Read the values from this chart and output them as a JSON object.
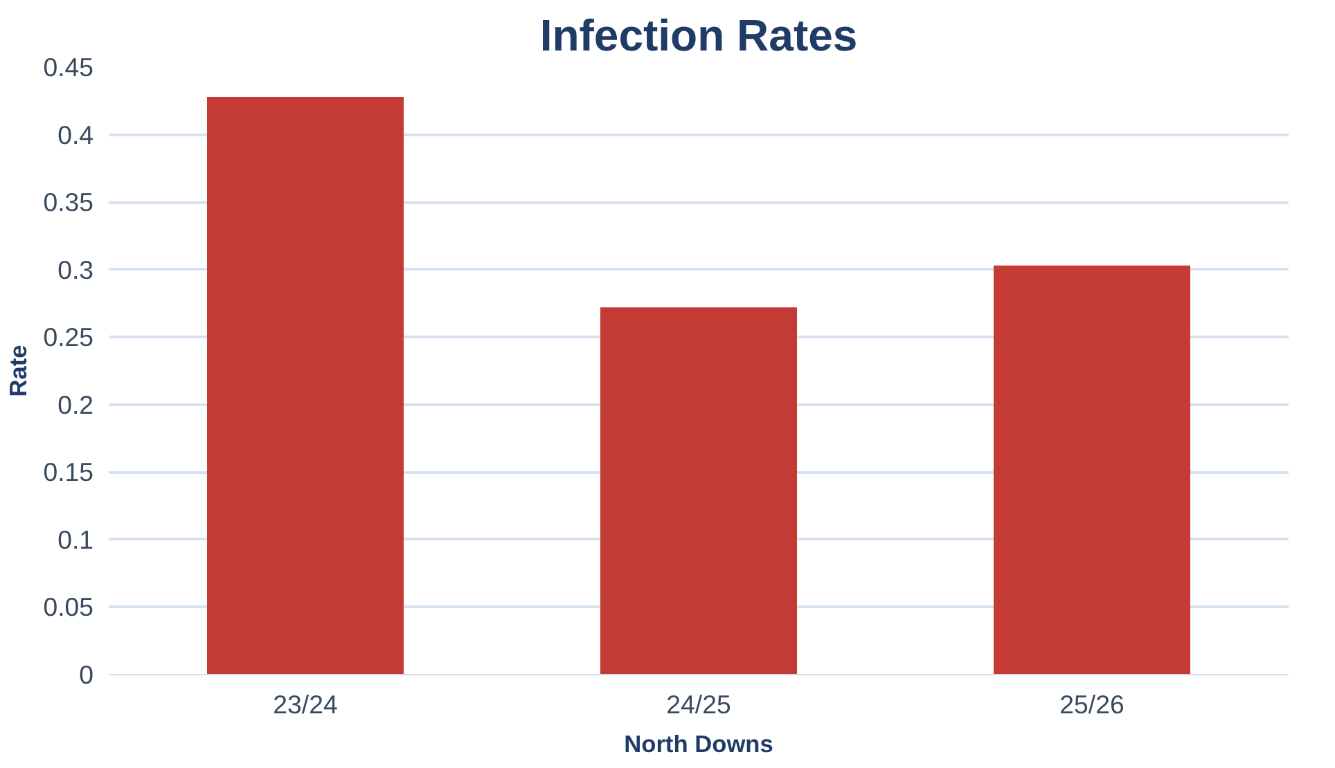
{
  "chart_data": {
    "type": "bar",
    "title": "Infection Rates",
    "xlabel": "North Downs",
    "ylabel": "Rate",
    "categories": [
      "23/24",
      "24/25",
      "25/26"
    ],
    "values": [
      0.428,
      0.272,
      0.303
    ],
    "color": "#c43a35",
    "ylim": [
      0,
      0.45
    ],
    "yticks": [
      0,
      0.05,
      0.1,
      0.15,
      0.2,
      0.25,
      0.3,
      0.35,
      0.4,
      0.45
    ],
    "grid": "y"
  }
}
